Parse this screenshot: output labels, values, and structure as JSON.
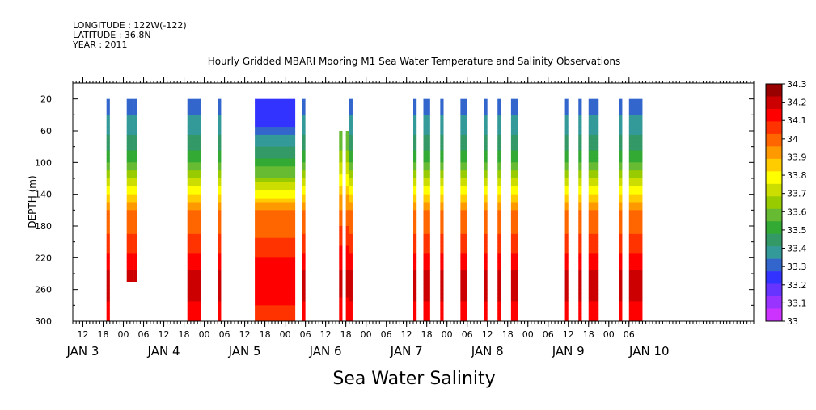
{
  "header": {
    "longitude": "LONGITUDE : 122W(-122)",
    "latitude": "LATITUDE : 36.8N",
    "year": "YEAR : 2011"
  },
  "colors": {
    "ramp": [
      "#cc33ff",
      "#9933ff",
      "#6633ff",
      "#3333ff",
      "#3366cc",
      "#339999",
      "#339966",
      "#33aa33",
      "#66bb33",
      "#99cc00",
      "#ccdd00",
      "#ffff00",
      "#ffcc00",
      "#ff9900",
      "#ff6600",
      "#ff3300",
      "#ff0000",
      "#cc0000",
      "#990000"
    ],
    "missing": "#ffffff"
  },
  "chart_data": {
    "type": "heatmap",
    "title": "Hourly Gridded MBARI Mooring M1 Sea Water Temperature and Salinity Observations",
    "xlabel": "Sea Water Salinity",
    "ylabel": "DEPTH (m)",
    "ylim": [
      300,
      0
    ],
    "yticks": [
      "20",
      "60",
      "100",
      "140",
      "180",
      "220",
      "260",
      "300"
    ],
    "ytick_values": [
      20,
      60,
      100,
      140,
      180,
      220,
      260,
      300
    ],
    "xlim": [
      "2011-01-02T09:00",
      "2011-01-10T19:00"
    ],
    "hour_ticks": [
      {
        "t": "2011-01-02T12:00",
        "label": "12"
      },
      {
        "t": "2011-01-02T18:00",
        "label": "18"
      },
      {
        "t": "2011-01-03T00:00",
        "label": "00"
      },
      {
        "t": "2011-01-03T06:00",
        "label": "06"
      },
      {
        "t": "2011-01-03T12:00",
        "label": "12"
      },
      {
        "t": "2011-01-03T18:00",
        "label": "18"
      },
      {
        "t": "2011-01-04T00:00",
        "label": "00"
      },
      {
        "t": "2011-01-04T06:00",
        "label": "06"
      },
      {
        "t": "2011-01-04T12:00",
        "label": "12"
      },
      {
        "t": "2011-01-04T18:00",
        "label": "18"
      },
      {
        "t": "2011-01-05T00:00",
        "label": "00"
      },
      {
        "t": "2011-01-05T06:00",
        "label": "06"
      },
      {
        "t": "2011-01-05T12:00",
        "label": "12"
      },
      {
        "t": "2011-01-05T18:00",
        "label": "18"
      },
      {
        "t": "2011-01-06T00:00",
        "label": "00"
      },
      {
        "t": "2011-01-06T06:00",
        "label": "06"
      },
      {
        "t": "2011-01-06T12:00",
        "label": "12"
      },
      {
        "t": "2011-01-06T18:00",
        "label": "18"
      },
      {
        "t": "2011-01-07T00:00",
        "label": "00"
      },
      {
        "t": "2011-01-07T06:00",
        "label": "06"
      },
      {
        "t": "2011-01-07T12:00",
        "label": "12"
      },
      {
        "t": "2011-01-07T18:00",
        "label": "18"
      },
      {
        "t": "2011-01-08T00:00",
        "label": "00"
      },
      {
        "t": "2011-01-08T06:00",
        "label": "06"
      },
      {
        "t": "2011-01-08T12:00",
        "label": "12"
      },
      {
        "t": "2011-01-08T18:00",
        "label": "18"
      },
      {
        "t": "2011-01-09T00:00",
        "label": "00"
      },
      {
        "t": "2011-01-09T06:00",
        "label": "06"
      }
    ],
    "day_labels": [
      {
        "t": "2011-01-02T12:00",
        "label": "JAN  3"
      },
      {
        "t": "2011-01-03T12:00",
        "label": "JAN  4"
      },
      {
        "t": "2011-01-04T12:00",
        "label": "JAN  5"
      },
      {
        "t": "2011-01-05T12:00",
        "label": "JAN  6"
      },
      {
        "t": "2011-01-06T12:00",
        "label": "JAN  7"
      },
      {
        "t": "2011-01-07T12:00",
        "label": "JAN  8"
      },
      {
        "t": "2011-01-08T12:00",
        "label": "JAN  9"
      },
      {
        "t": "2011-01-09T12:00",
        "label": "JAN 10"
      }
    ],
    "colorbar": {
      "min": 33.0,
      "max": 34.3,
      "step": 0.1,
      "labels": [
        "34.3",
        "34.2",
        "34.1",
        "34",
        "33.9",
        "33.8",
        "33.7",
        "33.6",
        "33.5",
        "33.4",
        "33.3",
        "33.2",
        "33.1",
        "33"
      ]
    },
    "profiles": {
      "deep": [
        [
          20,
          33.3
        ],
        [
          40,
          33.32
        ],
        [
          60,
          33.38
        ],
        [
          80,
          33.45
        ],
        [
          100,
          33.55
        ],
        [
          120,
          33.68
        ],
        [
          140,
          33.85
        ],
        [
          160,
          33.98
        ],
        [
          180,
          34.02
        ],
        [
          200,
          34.08
        ],
        [
          220,
          34.14
        ],
        [
          240,
          34.2
        ],
        [
          260,
          34.24
        ],
        [
          280,
          34.18
        ],
        [
          300,
          34.12
        ]
      ],
      "shallow_fresh": [
        [
          20,
          33.18
        ],
        [
          40,
          33.2
        ],
        [
          60,
          33.28
        ],
        [
          80,
          33.4
        ],
        [
          100,
          33.5
        ],
        [
          120,
          33.62
        ],
        [
          140,
          33.8
        ],
        [
          160,
          33.98
        ],
        [
          180,
          34.02
        ],
        [
          200,
          34.06
        ],
        [
          220,
          34.12
        ],
        [
          240,
          34.16
        ],
        [
          260,
          34.18
        ],
        [
          280,
          34.12
        ],
        [
          300,
          34.1
        ]
      ],
      "mid": [
        [
          60,
          33.55
        ],
        [
          80,
          33.6
        ],
        [
          100,
          33.68
        ],
        [
          120,
          33.78
        ],
        [
          140,
          33.9
        ],
        [
          160,
          33.98
        ],
        [
          180,
          34.04
        ],
        [
          200,
          34.1
        ],
        [
          220,
          34.16
        ],
        [
          240,
          34.2
        ],
        [
          260,
          34.24
        ],
        [
          280,
          34.16
        ],
        [
          300,
          34.12
        ]
      ]
    },
    "segments": [
      {
        "start": "2011-01-02T19:00",
        "end": "2011-01-02T20:00",
        "top": 20,
        "bottom": 300,
        "profile": "deep"
      },
      {
        "start": "2011-01-03T01:00",
        "end": "2011-01-03T03:00",
        "top": 20,
        "bottom": 250,
        "profile": "deep"
      },
      {
        "start": "2011-01-03T03:00",
        "end": "2011-01-03T04:00",
        "top": 20,
        "bottom": 250,
        "profile": "deep"
      },
      {
        "start": "2011-01-03T19:00",
        "end": "2011-01-03T23:00",
        "top": 20,
        "bottom": 300,
        "profile": "deep"
      },
      {
        "start": "2011-01-04T04:00",
        "end": "2011-01-04T05:00",
        "top": 20,
        "bottom": 300,
        "profile": "deep"
      },
      {
        "start": "2011-01-04T15:00",
        "end": "2011-01-05T03:00",
        "top": 20,
        "bottom": 300,
        "profile": "shallow_fresh"
      },
      {
        "start": "2011-01-05T05:00",
        "end": "2011-01-05T06:00",
        "top": 20,
        "bottom": 300,
        "profile": "deep"
      },
      {
        "start": "2011-01-05T16:00",
        "end": "2011-01-05T17:00",
        "top": 60,
        "bottom": 300,
        "profile": "mid"
      },
      {
        "start": "2011-01-05T18:00",
        "end": "2011-01-05T19:00",
        "top": 60,
        "bottom": 300,
        "profile": "mid"
      },
      {
        "start": "2011-01-05T19:00",
        "end": "2011-01-05T20:00",
        "top": 20,
        "bottom": 300,
        "profile": "deep"
      },
      {
        "start": "2011-01-06T14:00",
        "end": "2011-01-06T15:00",
        "top": 20,
        "bottom": 300,
        "profile": "deep"
      },
      {
        "start": "2011-01-06T17:00",
        "end": "2011-01-06T19:00",
        "top": 20,
        "bottom": 300,
        "profile": "deep"
      },
      {
        "start": "2011-01-06T22:00",
        "end": "2011-01-06T23:00",
        "top": 20,
        "bottom": 300,
        "profile": "deep"
      },
      {
        "start": "2011-01-07T04:00",
        "end": "2011-01-07T06:00",
        "top": 20,
        "bottom": 300,
        "profile": "deep"
      },
      {
        "start": "2011-01-07T11:00",
        "end": "2011-01-07T12:00",
        "top": 20,
        "bottom": 300,
        "profile": "deep"
      },
      {
        "start": "2011-01-07T15:00",
        "end": "2011-01-07T16:00",
        "top": 20,
        "bottom": 300,
        "profile": "deep"
      },
      {
        "start": "2011-01-07T19:00",
        "end": "2011-01-07T21:00",
        "top": 20,
        "bottom": 300,
        "profile": "deep"
      },
      {
        "start": "2011-01-08T11:00",
        "end": "2011-01-08T12:00",
        "top": 20,
        "bottom": 300,
        "profile": "deep"
      },
      {
        "start": "2011-01-08T15:00",
        "end": "2011-01-08T16:00",
        "top": 20,
        "bottom": 300,
        "profile": "deep"
      },
      {
        "start": "2011-01-08T18:00",
        "end": "2011-01-08T21:00",
        "top": 20,
        "bottom": 300,
        "profile": "deep"
      },
      {
        "start": "2011-01-09T03:00",
        "end": "2011-01-09T04:00",
        "top": 20,
        "bottom": 300,
        "profile": "deep"
      },
      {
        "start": "2011-01-09T06:00",
        "end": "2011-01-09T10:00",
        "top": 20,
        "bottom": 300,
        "profile": "deep"
      }
    ]
  }
}
